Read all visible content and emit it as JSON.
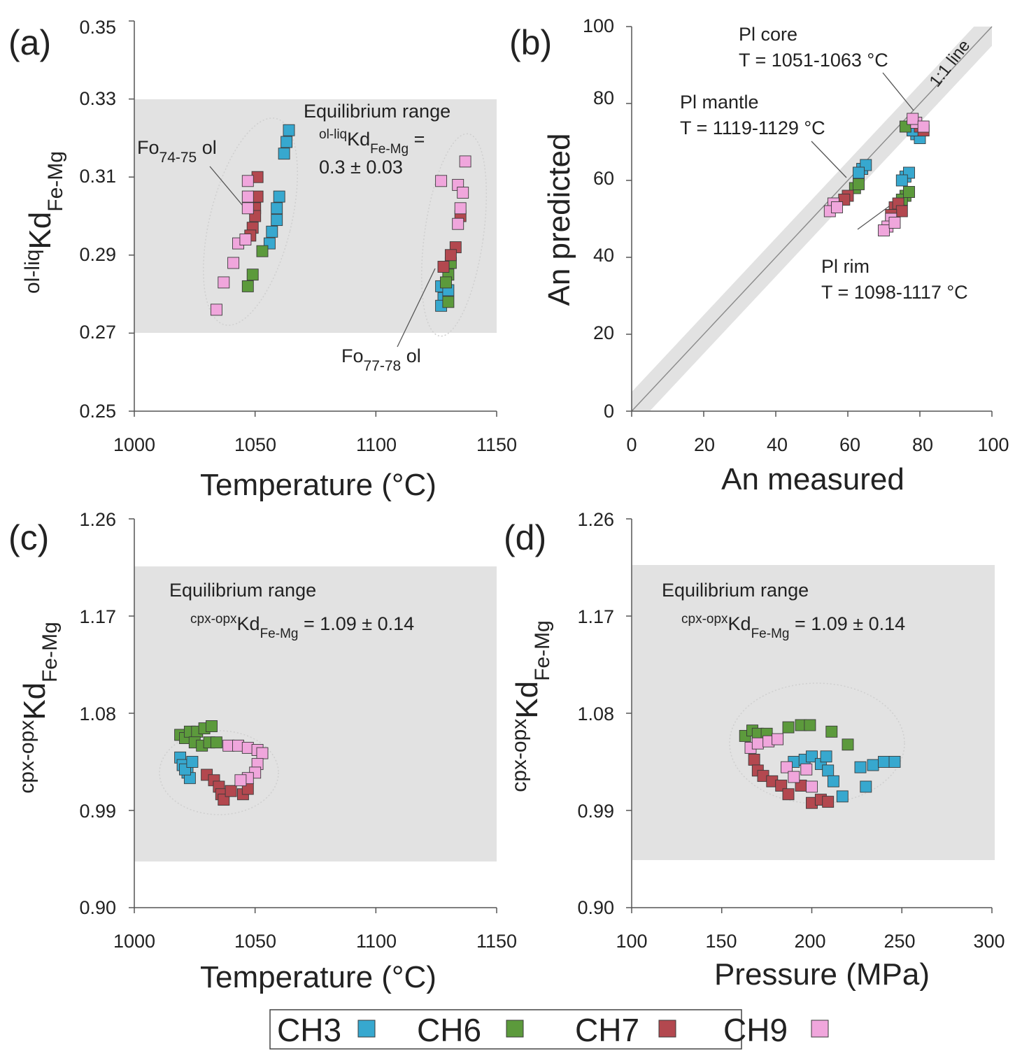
{
  "colors": {
    "CH3": "#37a8cf",
    "CH6": "#5c9a3c",
    "CH7": "#b3484f",
    "CH9": "#f0a6dc",
    "band": "#e2e2e2",
    "marker_edge": "#3a3a3a"
  },
  "legend": {
    "items": [
      {
        "label": "CH3",
        "series": "CH3"
      },
      {
        "label": "CH6",
        "series": "CH6"
      },
      {
        "label": "CH7",
        "series": "CH7"
      },
      {
        "label": "CH9",
        "series": "CH9"
      }
    ]
  },
  "chart_data": [
    {
      "panel": "(a)",
      "type": "scatter",
      "xlabel": "Temperature (°C)",
      "ylabel": {
        "pre": "ol-liq",
        "main": "Kd",
        "sub": "Fe-Mg"
      },
      "xlim": [
        1000,
        1150
      ],
      "ylim": [
        0.25,
        0.35
      ],
      "xticks": [
        "1000",
        "1050",
        "1100",
        "1150"
      ],
      "yticks": [
        "0.25",
        "0.27",
        "0.29",
        "0.31",
        "0.33",
        "0.35"
      ],
      "band": [
        0.27,
        0.33
      ],
      "annotations": {
        "eq_title": "Equilibrium range",
        "eq_formula_pre": "ol-liq",
        "eq_formula_main": "Kd",
        "eq_formula_sub": "Fe-Mg",
        "eq_formula_eq": " =",
        "eq_value": "0.3 ± 0.03",
        "fo1_pre": "Fo",
        "fo1_sub": "74-75",
        "fo1_post": " ol",
        "fo2_pre": "Fo",
        "fo2_sub": "77-78",
        "fo2_post": " ol"
      },
      "series": [
        {
          "name": "CH3",
          "points": [
            [
              1064,
              0.322
            ],
            [
              1063,
              0.319
            ],
            [
              1062,
              0.316
            ],
            [
              1060,
              0.305
            ],
            [
              1059,
              0.302
            ],
            [
              1059,
              0.299
            ],
            [
              1057,
              0.296
            ],
            [
              1056,
              0.293
            ],
            [
              1127,
              0.282
            ],
            [
              1128,
              0.279
            ],
            [
              1127,
              0.277
            ],
            [
              1130,
              0.281
            ]
          ]
        },
        {
          "name": "CH6",
          "points": [
            [
              1053,
              0.291
            ],
            [
              1049,
              0.285
            ],
            [
              1047,
              0.282
            ],
            [
              1131,
              0.288
            ],
            [
              1130,
              0.285
            ],
            [
              1129,
              0.283
            ],
            [
              1130,
              0.278
            ]
          ]
        },
        {
          "name": "CH7",
          "points": [
            [
              1051,
              0.31
            ],
            [
              1051,
              0.305
            ],
            [
              1050,
              0.302
            ],
            [
              1050,
              0.3
            ],
            [
              1049,
              0.297
            ],
            [
              1048,
              0.295
            ],
            [
              1135,
              0.3
            ],
            [
              1133,
              0.292
            ],
            [
              1131,
              0.29
            ],
            [
              1128,
              0.287
            ]
          ]
        },
        {
          "name": "CH9",
          "points": [
            [
              1034,
              0.276
            ],
            [
              1037,
              0.283
            ],
            [
              1041,
              0.288
            ],
            [
              1043,
              0.293
            ],
            [
              1046,
              0.294
            ],
            [
              1047,
              0.302
            ],
            [
              1047,
              0.305
            ],
            [
              1047,
              0.309
            ],
            [
              1137,
              0.314
            ],
            [
              1134,
              0.308
            ],
            [
              1136,
              0.306
            ],
            [
              1135,
              0.302
            ],
            [
              1134,
              0.298
            ],
            [
              1127,
              0.309
            ]
          ]
        }
      ]
    },
    {
      "panel": "(b)",
      "type": "scatter",
      "xlabel": "An measured",
      "ylabel": "An predicted",
      "xlim": [
        0,
        100
      ],
      "ylim": [
        0,
        100
      ],
      "xticks": [
        "0",
        "20",
        "40",
        "60",
        "80",
        "100"
      ],
      "yticks": [
        "0",
        "20",
        "40",
        "60",
        "80",
        "100"
      ],
      "oneone_band": 5,
      "annotations": {
        "line_label": "1:1 line",
        "core_title": "Pl core",
        "core_T": "T = 1051-1063 °C",
        "mantle_title": "Pl mantle",
        "mantle_T": "T = 1119-1129 °C",
        "rim_title": "Pl rim",
        "rim_T": "T = 1098-1117 °C"
      },
      "series": [
        {
          "name": "CH3",
          "points": [
            [
              79,
              72
            ],
            [
              80,
              71
            ],
            [
              78,
              73
            ],
            [
              64,
              63
            ],
            [
              65,
              64
            ],
            [
              63,
              62
            ],
            [
              76,
              61
            ],
            [
              77,
              62
            ],
            [
              75,
              60
            ],
            [
              78,
              73
            ]
          ]
        },
        {
          "name": "CH6",
          "points": [
            [
              76,
              74
            ],
            [
              62,
              58
            ],
            [
              63,
              59
            ],
            [
              76,
              56
            ],
            [
              75,
              55
            ],
            [
              77,
              57
            ]
          ]
        },
        {
          "name": "CH7",
          "points": [
            [
              80,
              74
            ],
            [
              81,
              73
            ],
            [
              60,
              56
            ],
            [
              59,
              55
            ],
            [
              73,
              53
            ],
            [
              74,
              54
            ],
            [
              75,
              52
            ],
            [
              72,
              51
            ]
          ]
        },
        {
          "name": "CH9",
          "points": [
            [
              79,
              75
            ],
            [
              78,
              76
            ],
            [
              81,
              74
            ],
            [
              56,
              54
            ],
            [
              55,
              52
            ],
            [
              57,
              53
            ],
            [
              72,
              50
            ],
            [
              71,
              48
            ],
            [
              70,
              47
            ],
            [
              73,
              49
            ]
          ]
        }
      ]
    },
    {
      "panel": "(c)",
      "type": "scatter",
      "xlabel": "Temperature (°C)",
      "ylabel": {
        "pre": "cpx-opx",
        "main": "Kd",
        "sub": "Fe-Mg"
      },
      "xlim": [
        1000,
        1150
      ],
      "ylim": [
        0.9,
        1.26
      ],
      "xticks": [
        "1000",
        "1050",
        "1100",
        "1150"
      ],
      "yticks": [
        "0.90",
        "0.99",
        "1.08",
        "1.17",
        "1.26"
      ],
      "band": [
        0.95,
        1.23
      ],
      "annotations": {
        "eq_title": "Equilibrium range",
        "eq_formula_pre": "cpx-opx",
        "eq_formula_main": "Kd",
        "eq_formula_sub": "Fe-Mg",
        "eq_value": " = 1.09 ± 0.14"
      },
      "series": [
        {
          "name": "CH3",
          "points": [
            [
              1019,
              1.039
            ],
            [
              1020,
              1.032
            ],
            [
              1022,
              1.025
            ],
            [
              1023,
              1.02
            ],
            [
              1021,
              1.028
            ],
            [
              1024,
              1.035
            ]
          ]
        },
        {
          "name": "CH6",
          "points": [
            [
              1019,
              1.06
            ],
            [
              1021,
              1.057
            ],
            [
              1023,
              1.063
            ],
            [
              1026,
              1.063
            ],
            [
              1029,
              1.066
            ],
            [
              1032,
              1.068
            ],
            [
              1025,
              1.053
            ],
            [
              1028,
              1.05
            ],
            [
              1031,
              1.053
            ],
            [
              1034,
              1.053
            ]
          ]
        },
        {
          "name": "CH7",
          "points": [
            [
              1030,
              1.023
            ],
            [
              1033,
              1.018
            ],
            [
              1035,
              1.012
            ],
            [
              1036,
              1.005
            ],
            [
              1037,
              1.0
            ],
            [
              1040,
              1.008
            ],
            [
              1045,
              1.005
            ],
            [
              1047,
              1.01
            ]
          ]
        },
        {
          "name": "CH9",
          "points": [
            [
              1039,
              1.05
            ],
            [
              1043,
              1.05
            ],
            [
              1047,
              1.048
            ],
            [
              1051,
              1.046
            ],
            [
              1053,
              1.043
            ],
            [
              1051,
              1.033
            ],
            [
              1050,
              1.025
            ],
            [
              1047,
              1.02
            ],
            [
              1044,
              1.018
            ]
          ]
        }
      ]
    },
    {
      "panel": "(d)",
      "type": "scatter",
      "xlabel": "Pressure (MPa)",
      "ylabel": {
        "pre": "cpx-opx",
        "main": "Kd",
        "sub": "Fe-Mg"
      },
      "xlim": [
        100,
        300
      ],
      "ylim": [
        0.9,
        1.26
      ],
      "xticks": [
        "100",
        "150",
        "200",
        "250",
        "300"
      ],
      "yticks": [
        "0.90",
        "0.99",
        "1.08",
        "1.17",
        "1.26"
      ],
      "band": [
        0.95,
        1.23
      ],
      "annotations": {
        "eq_title": "Equilibrium range",
        "eq_formula_pre": "cpx-opx",
        "eq_formula_main": "Kd",
        "eq_formula_sub": "Fe-Mg",
        "eq_value": " = 1.09 ± 0.14"
      },
      "series": [
        {
          "name": "CH3",
          "points": [
            [
              190,
              1.035
            ],
            [
              196,
              1.037
            ],
            [
              200,
              1.04
            ],
            [
              205,
              1.033
            ],
            [
              209,
              1.027
            ],
            [
              212,
              1.017
            ],
            [
              217,
              1.003
            ],
            [
              227,
              1.03
            ],
            [
              234,
              1.032
            ],
            [
              240,
              1.035
            ],
            [
              246,
              1.035
            ],
            [
              230,
              1.012
            ],
            [
              208,
              1.04
            ]
          ]
        },
        {
          "name": "CH6",
          "points": [
            [
              163,
              1.059
            ],
            [
              167,
              1.064
            ],
            [
              170,
              1.061
            ],
            [
              175,
              1.061
            ],
            [
              187,
              1.067
            ],
            [
              194,
              1.069
            ],
            [
              199,
              1.069
            ],
            [
              211,
              1.063
            ],
            [
              220,
              1.051
            ]
          ]
        },
        {
          "name": "CH7",
          "points": [
            [
              168,
              1.037
            ],
            [
              170,
              1.027
            ],
            [
              173,
              1.022
            ],
            [
              178,
              1.017
            ],
            [
              183,
              1.013
            ],
            [
              187,
              1.005
            ],
            [
              194,
              1.013
            ],
            [
              200,
              0.997
            ],
            [
              205,
              1.0
            ],
            [
              209,
              0.998
            ]
          ]
        },
        {
          "name": "CH9",
          "points": [
            [
              166,
              1.048
            ],
            [
              170,
              1.052
            ],
            [
              176,
              1.054
            ],
            [
              181,
              1.056
            ],
            [
              186,
              1.03
            ],
            [
              190,
              1.021
            ],
            [
              197,
              1.028
            ],
            [
              200,
              1.012
            ]
          ]
        }
      ]
    }
  ]
}
